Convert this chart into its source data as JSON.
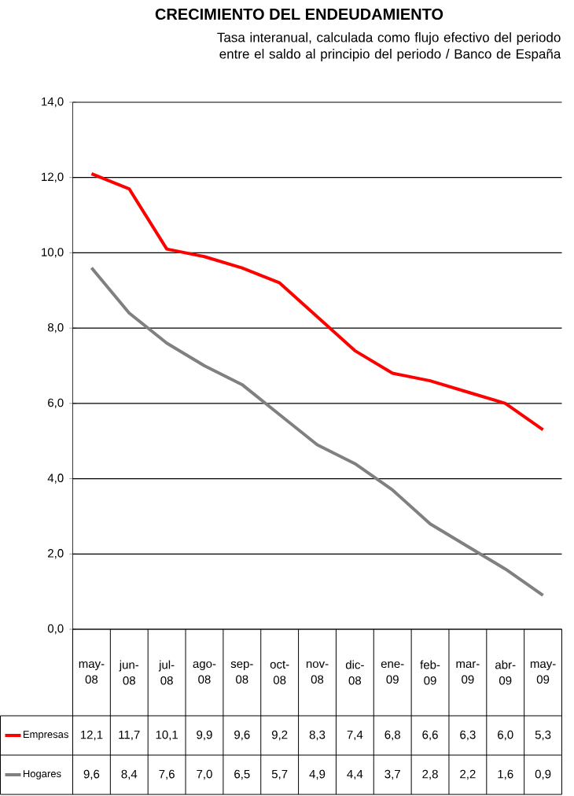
{
  "chart_data": {
    "type": "line",
    "title": "CRECIMIENTO DEL ENDEUDAMIENTO",
    "subtitle": "Tasa interanual, calculada como flujo efectivo del periodo entre el saldo al principio del periodo  / Banco de España",
    "categories": [
      "may-08",
      "jun-08",
      "jul-08",
      "ago-08",
      "sep-08",
      "oct-08",
      "nov-08",
      "dic-08",
      "ene-09",
      "feb-09",
      "mar-09",
      "abr-09",
      "may-09"
    ],
    "series": [
      {
        "name": "Empresas",
        "color": "#ff0000",
        "values": [
          12.1,
          11.7,
          10.1,
          9.9,
          9.6,
          9.2,
          8.3,
          7.4,
          6.8,
          6.6,
          6.3,
          6.0,
          5.3
        ],
        "value_labels": [
          "12,1",
          "11,7",
          "10,1",
          "9,9",
          "9,6",
          "9,2",
          "8,3",
          "7,4",
          "6,8",
          "6,6",
          "6,3",
          "6,0",
          "5,3"
        ]
      },
      {
        "name": "Hogares",
        "color": "#808080",
        "values": [
          9.6,
          8.4,
          7.6,
          7.0,
          6.5,
          5.7,
          4.9,
          4.4,
          3.7,
          2.8,
          2.2,
          1.6,
          0.9
        ],
        "value_labels": [
          "9,6",
          "8,4",
          "7,6",
          "7,0",
          "6,5",
          "5,7",
          "4,9",
          "4,4",
          "3,7",
          "2,8",
          "2,2",
          "1,6",
          "0,9"
        ]
      }
    ],
    "ylim": [
      0,
      14
    ],
    "yticks": [
      {
        "value": 0,
        "label": "0,0"
      },
      {
        "value": 2,
        "label": "2,0"
      },
      {
        "value": 4,
        "label": "4,0"
      },
      {
        "value": 6,
        "label": "6,0"
      },
      {
        "value": 8,
        "label": "8,0"
      },
      {
        "value": 10,
        "label": "10,0"
      },
      {
        "value": 12,
        "label": "12,0"
      },
      {
        "value": 14,
        "label": "14,0"
      }
    ],
    "grid": "y",
    "legend": "bottom",
    "marker": "none",
    "line_style": "solid"
  }
}
